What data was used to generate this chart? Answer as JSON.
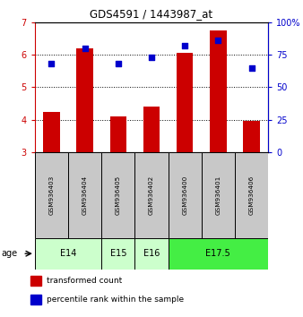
{
  "title": "GDS4591 / 1443987_at",
  "samples": [
    "GSM936403",
    "GSM936404",
    "GSM936405",
    "GSM936402",
    "GSM936400",
    "GSM936401",
    "GSM936406"
  ],
  "transformed_count": [
    4.25,
    6.2,
    4.1,
    4.4,
    6.05,
    6.75,
    3.95
  ],
  "percentile_rank": [
    68,
    80,
    68,
    73,
    82,
    86,
    65
  ],
  "bar_color": "#cc0000",
  "dot_color": "#0000cc",
  "bar_bottom": 3.0,
  "ylim_left": [
    3,
    7
  ],
  "ylim_right": [
    0,
    100
  ],
  "yticks_left": [
    3,
    4,
    5,
    6,
    7
  ],
  "yticks_right": [
    0,
    25,
    50,
    75,
    100
  ],
  "ytick_labels_right": [
    "0",
    "25",
    "50",
    "75",
    "100%"
  ],
  "age_groups": [
    {
      "label": "E14",
      "samples": [
        0,
        1
      ],
      "color": "#ccffcc"
    },
    {
      "label": "E15",
      "samples": [
        2
      ],
      "color": "#ccffcc"
    },
    {
      "label": "E16",
      "samples": [
        3
      ],
      "color": "#ccffcc"
    },
    {
      "label": "E17.5",
      "samples": [
        4,
        5,
        6
      ],
      "color": "#44ee44"
    }
  ],
  "legend_labels": [
    "transformed count",
    "percentile rank within the sample"
  ],
  "legend_colors": [
    "#cc0000",
    "#0000cc"
  ],
  "age_label": "age",
  "sample_box_color": "#c8c8c8",
  "plot_bg": "#ffffff"
}
